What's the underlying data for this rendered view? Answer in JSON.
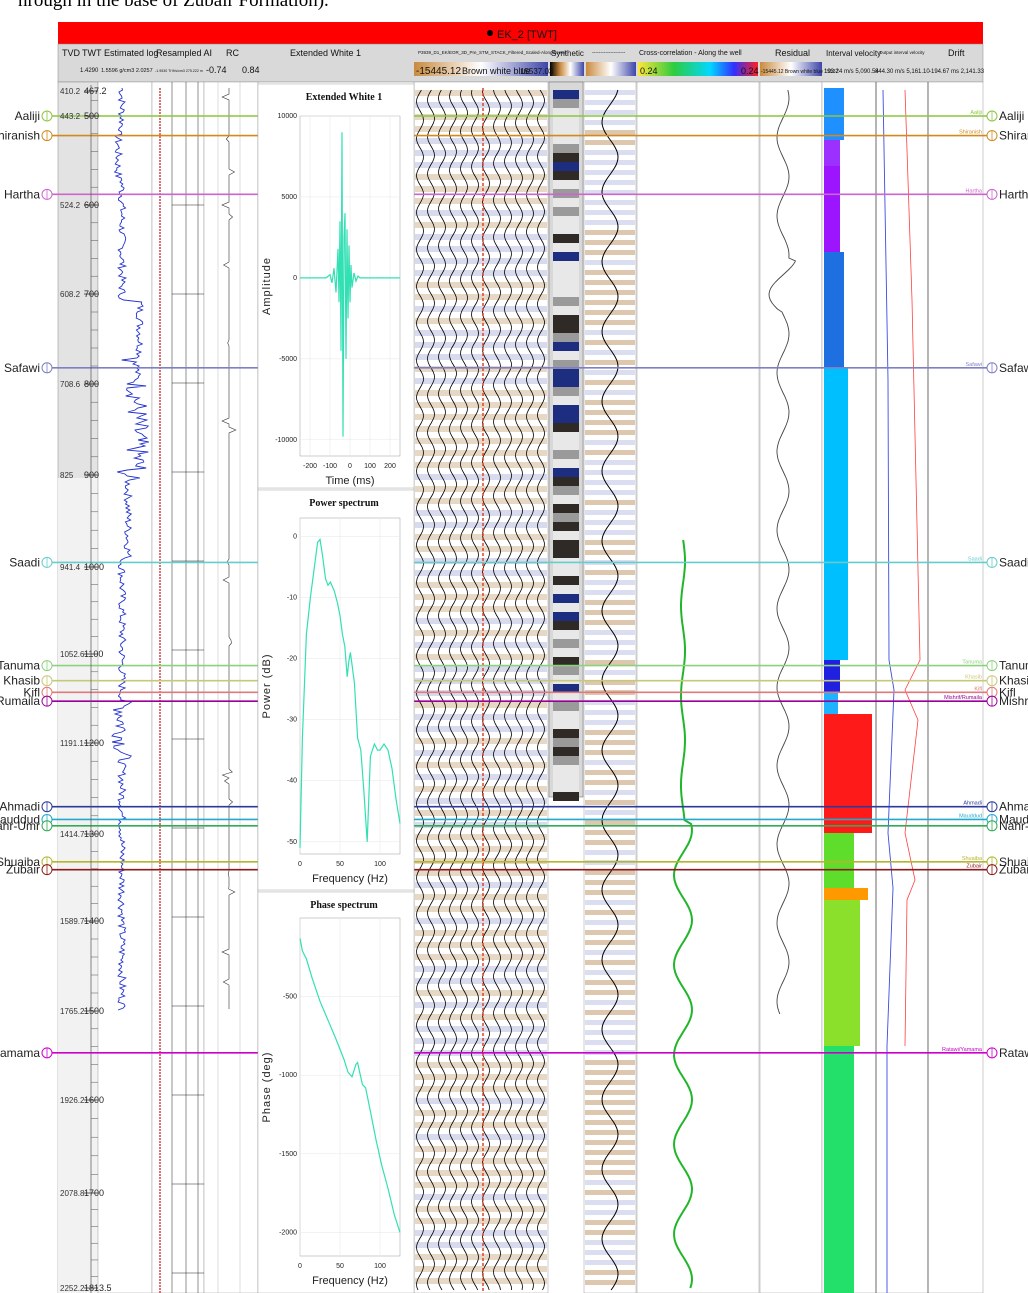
{
  "caption": "hrough in the base of Zubair Formation).",
  "well_title": "EK_2 [TWT]",
  "columns": {
    "tvd": "TVD",
    "twt": "TWT",
    "estimated_log": "Estimated log",
    "resampled_ai": "Resampled AI",
    "rc": "RC",
    "extended_white": "Extended White 1",
    "seismic": "P3939_D1_EK/EOR_3D_Pre_STM_STACK_Filtered_Scaled-Alongthewell",
    "synthetic": "Synthetic",
    "synthetic_trace": "--------------------",
    "cross_correlation": "Cross-correlation - Along the well",
    "residual": "Residual",
    "interval_velocity": "Interval velocity",
    "output_velocity": "Output interval velocity",
    "drift": "Drift"
  },
  "column_subs": {
    "tvd_twt": "1.4290",
    "estimated_log": "1.5596 g/cm3 2.0257",
    "resampled_ai": "-1.9530 Tf ft/s/cm3 275.222 m",
    "rc_min": "-0.74",
    "rc_max": "0.84",
    "seismic_min": "-15445.12",
    "seismic_scale": "Brown white blue",
    "seismic_max": "15537.03",
    "cc_min": "0.24",
    "cc_max": "0.24",
    "residual": "-15445.12 Brown white blue 15537",
    "interval_velocity": "193.24 m/s 5,090.54",
    "output_velocity": "844.30 m/s 5,161.10",
    "drift": "-194.67 ms 2,141.33"
  },
  "depth_ticks": [
    {
      "tvd": "410.2",
      "twt": "467.2"
    },
    {
      "tvd": "443.2",
      "twt": "500"
    },
    {
      "tvd": "524.2",
      "twt": "600"
    },
    {
      "tvd": "608.2",
      "twt": "700"
    },
    {
      "tvd": "708.6",
      "twt": "800"
    },
    {
      "tvd": "825",
      "twt": "900"
    },
    {
      "tvd": "941.4",
      "twt": "1000"
    },
    {
      "tvd": "1052.6",
      "twt": "1100"
    },
    {
      "tvd": "1191.1",
      "twt": "1200"
    },
    {
      "tvd": "1414.7",
      "twt": "1300"
    },
    {
      "tvd": "1589.7",
      "twt": "1400"
    },
    {
      "tvd": "1765.2",
      "twt": "1500"
    },
    {
      "tvd": "1926.2",
      "twt": "1600"
    },
    {
      "tvd": "2078.8",
      "twt": "1700"
    },
    {
      "tvd": "2252.2",
      "twt": "1813.5"
    }
  ],
  "markers": [
    {
      "left": "Aaliji",
      "right": "Aaliji",
      "small": "Aaliji",
      "twt": 500,
      "color": "#8cc63f"
    },
    {
      "left": "hiranish",
      "right": "Shirani",
      "small": "Shiranish",
      "twt": 522,
      "color": "#d08a1e"
    },
    {
      "left": "Hartha",
      "right": "Hartha",
      "small": "Hartha",
      "twt": 588,
      "color": "#cc66cc"
    },
    {
      "left": "Safawi",
      "right": "Safawi",
      "small": "Safawi",
      "twt": 782,
      "color": "#7f7fc6"
    },
    {
      "left": "Saadi",
      "right": "Saadi",
      "small": "Saadi",
      "twt": 995,
      "color": "#66cccc"
    },
    {
      "left": "Tanuma",
      "right": "Tanum",
      "small": "Tanuma",
      "twt": 1113,
      "color": "#8cd17d"
    },
    {
      "left": "Khasib",
      "right": "Khasib",
      "small": "Khasib",
      "twt": 1130,
      "color": "#c8c87a"
    },
    {
      "left": "Kifl",
      "right": "Kifl",
      "small": "Kifl",
      "twt": 1143,
      "color": "#e07a7a"
    },
    {
      "left": "Rumaila",
      "right": "Mishrif",
      "small": "Mishrif/Rumaila",
      "twt": 1153,
      "color": "#990099"
    },
    {
      "left": "Ahmadi",
      "right": "Ahmad",
      "small": "Ahmadi",
      "twt": 1270,
      "color": "#2b3a9b"
    },
    {
      "left": "lauddud",
      "right": "Maudd",
      "small": "Mauddud",
      "twt": 1284,
      "color": "#22aacc"
    },
    {
      "left": "lahr-Umr",
      "right": "Nahr-U",
      "small": "",
      "twt": 1291,
      "color": "#33aa55"
    },
    {
      "left": "Shuaiba",
      "right": "Shuaib",
      "small": "Shuaiba",
      "twt": 1332,
      "color": "#b5b52e"
    },
    {
      "left": "Zubair",
      "right": "Zubair",
      "small": "Zubair",
      "twt": 1341,
      "color": "#8b1a1a"
    },
    {
      "left": "'amama",
      "right": "Ratawi",
      "small": "Ratawi/Yamama",
      "twt": 1547,
      "color": "#cc00cc"
    }
  ],
  "chart_data": [
    {
      "type": "line",
      "title": "Extended White 1",
      "xlabel": "Time (ms)",
      "ylabel": "Amplitude",
      "xlim": [
        -250,
        250
      ],
      "ylim": [
        -11000,
        10000
      ],
      "xticks": [
        -200,
        -100,
        0,
        100,
        200
      ],
      "yticks": [
        10000,
        5000,
        0,
        -5000,
        -10000
      ],
      "x": [
        -250,
        -120,
        -100,
        -90,
        -80,
        -70,
        -60,
        -55,
        -50,
        -45,
        -40,
        -35,
        -30,
        -25,
        -20,
        -15,
        -10,
        -5,
        0,
        5,
        10,
        20,
        30,
        40,
        50,
        60,
        70,
        100,
        250
      ],
      "y": [
        0,
        0,
        200,
        -300,
        600,
        -900,
        1800,
        -1500,
        3500,
        -4500,
        9000,
        -9800,
        2500,
        4000,
        -5000,
        3000,
        -2500,
        2000,
        -1500,
        800,
        -600,
        300,
        -200,
        120,
        0,
        0,
        0,
        0,
        0
      ],
      "color": "#33e0b3"
    },
    {
      "type": "line",
      "title": "Power spectrum",
      "xlabel": "Frequency (Hz)",
      "ylabel": "Power (dB)",
      "xlim": [
        0,
        125
      ],
      "ylim": [
        -52,
        3
      ],
      "xticks": [
        0,
        50,
        100
      ],
      "yticks": [
        0,
        -10,
        -20,
        -30,
        -40,
        -50
      ],
      "x": [
        0,
        3,
        8,
        13,
        18,
        22,
        25,
        28,
        32,
        35,
        38,
        43,
        47,
        50,
        53,
        56,
        59,
        61,
        63,
        65,
        68,
        72,
        76,
        80,
        84,
        88,
        93,
        97,
        100,
        105,
        110,
        115,
        120,
        125
      ],
      "y": [
        -51,
        -33,
        -16,
        -10,
        -5,
        -1,
        -0.5,
        -3,
        -7,
        -8,
        -7.5,
        -9,
        -11,
        -13,
        -16,
        -18,
        -23,
        -20.5,
        -19,
        -21,
        -24,
        -33,
        -35,
        -42,
        -50,
        -36,
        -34,
        -35,
        -35,
        -34,
        -35,
        -38,
        -43,
        -47
      ],
      "color": "#33e0b3"
    },
    {
      "type": "line",
      "title": "Phase spectrum",
      "xlabel": "Frequency (Hz)",
      "ylabel": "Phase (deg)",
      "xlim": [
        0,
        125
      ],
      "ylim": [
        -2150,
        0
      ],
      "xticks": [
        0,
        50,
        100
      ],
      "yticks": [
        -500,
        -1000,
        -1500,
        -2000
      ],
      "x": [
        0,
        3,
        8,
        15,
        25,
        35,
        45,
        55,
        60,
        65,
        70,
        72,
        75,
        78,
        82,
        88,
        95,
        102,
        110,
        118,
        125
      ],
      "y": [
        -130,
        -210,
        -260,
        -380,
        -530,
        -650,
        -770,
        -900,
        -980,
        -1010,
        -930,
        -920,
        -990,
        -1060,
        -1080,
        -1230,
        -1410,
        -1570,
        -1720,
        -1890,
        -2000
      ],
      "color": "#33e0b3"
    }
  ]
}
